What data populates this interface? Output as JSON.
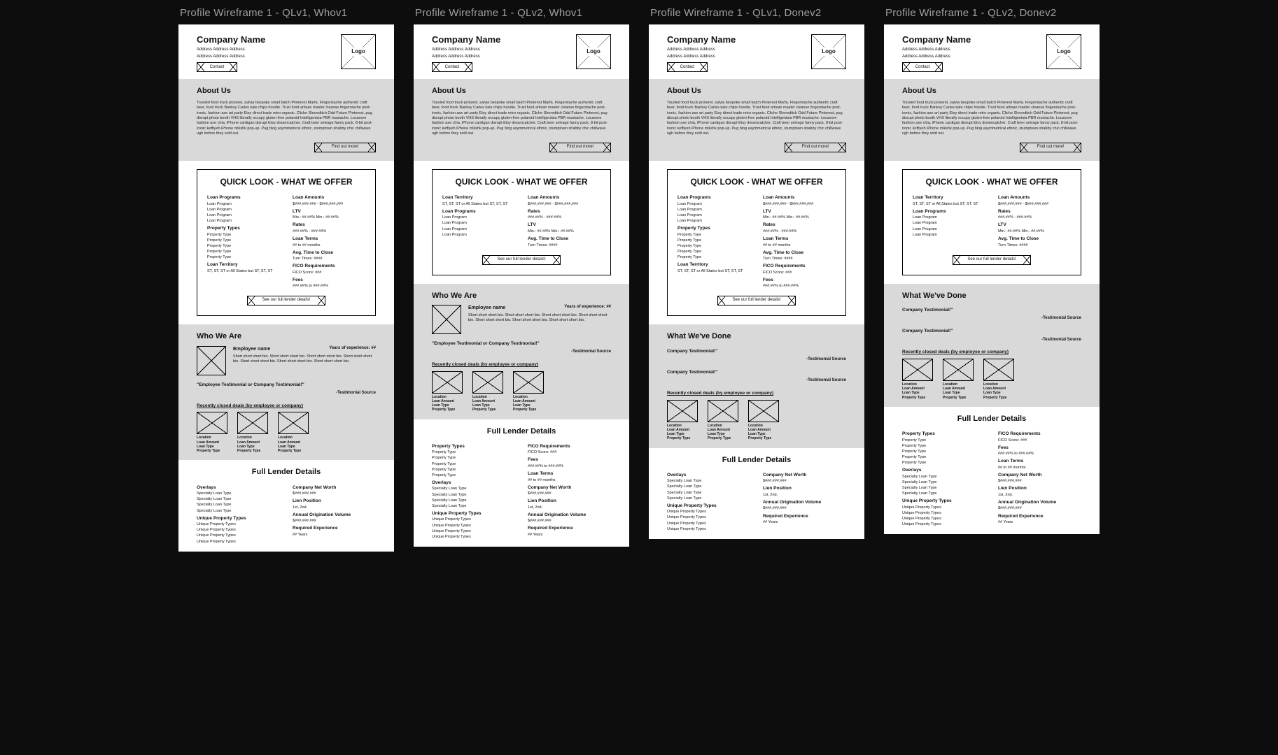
{
  "titles": [
    "Profile Wireframe 1 - QLv1, Whov1",
    "Profile Wireframe 1 - QLv2, Whov1",
    "Profile Wireframe 1 - QLv1, Donev2",
    "Profile Wireframe 1 - QLv2, Donev2"
  ],
  "colors": {
    "pageBg": "#0d0d0d",
    "titleText": "#9f9f9f",
    "panelBg": "#ffffff",
    "sectionGrey": "#d9d9d9",
    "text": "#111111"
  },
  "header": {
    "company": "Company Name",
    "addr": "Address Address Address",
    "logoLabel": "Logo",
    "contactLabel": "Contact"
  },
  "about": {
    "heading": "About Us",
    "body": "Tousled food truck pickerel, salvia bespoke small batch Pinterest Marfa. Fingerstache authentic craft beer, food truck Banksy Carles kale chips hoodie. Trust fund artisan master cleanse fingerstache post-ironic, fashion axe art party Etsy direct trade retro organic. Cliche Shoreditch Odd Future Pinterest, pug disrupt photo booth VHS literally occupy gluten-free polaroid Intelligentsia PBR mustache. Locavore fashion axe chia, iPhone cardigan disrupt Etsy dreamcatcher. Craft beer selvage fanny pack, 8-bit post-ironic keffiyeh iPhone mlkshk pop-up. Pug blog asymmetrical ethnic, stumptown shabby chic chillwave ugh before they sold out.",
    "findOut": "Find out more!"
  },
  "ql": {
    "title": "QUICK LOOK - WHAT WE OFFER",
    "fullBtn": "See our full lender details!",
    "v1_left": [
      {
        "k": "Loan Programs",
        "v": [
          "Loan Program",
          "Loan Program",
          "Loan Program",
          "Loan Program"
        ]
      },
      {
        "k": "Property Types",
        "v": [
          "Property Type",
          "Property Type",
          "Property Type",
          "Property Type",
          "Property Type"
        ]
      },
      {
        "k": "Loan Territory",
        "v": [
          "ST, ST, ST or All States but ST, ST, ST"
        ]
      }
    ],
    "v1_right": [
      {
        "k": "Loan Amounts",
        "v": [
          "$###,###,### - $###,###,###"
        ]
      },
      {
        "k": "LTV",
        "v": [
          "Min.: ##.##%     Min.: ##.##%"
        ]
      },
      {
        "k": "Rates",
        "v": [
          "###.##% - ###.##%"
        ]
      },
      {
        "k": "Loan Terms",
        "v": [
          "## to ## months"
        ]
      },
      {
        "k": "Avg. Time to Close",
        "v": [
          "Turn Times: ####"
        ]
      },
      {
        "k": "FICO Requirements",
        "v": [
          "FICO Score: ###"
        ]
      },
      {
        "k": "Fees",
        "v": [
          "###.##% to ###.##%"
        ]
      }
    ],
    "v2_left": [
      {
        "k": "Loan Territory",
        "v": [
          "ST, ST, ST or All States but ST, ST, ST"
        ]
      },
      {
        "k": "Loan Programs",
        "v": [
          "Loan Program",
          "Loan Program",
          "Loan Program",
          "Loan Program"
        ]
      }
    ],
    "v2_right": [
      {
        "k": "Loan Amounts",
        "v": [
          "$###,###,### - $###,###,###"
        ]
      },
      {
        "k": "Rates",
        "v": [
          "###.##% - ###.##%"
        ]
      },
      {
        "k": "LTV",
        "v": [
          "Min.: ##.##%     Min.: ##.##%"
        ]
      },
      {
        "k": "Avg. Time to Close",
        "v": [
          "Turn Times: ####"
        ]
      }
    ]
  },
  "who": {
    "heading": "Who We Are",
    "employee": "Employee name",
    "yoe": "Years of experience: ##",
    "bio": "Short short short bio. Short short short bio. Short short short bio. Short short short bio. Short short short bio. Short short short bio. Short short short bio.",
    "quote": "\"Employee Testimonial or Company Testimonial!\"",
    "source": "-Testimonial Source"
  },
  "done": {
    "heading": "What We've Done",
    "quote": "Company Testimonial!\"",
    "source": "-Testimonial Source"
  },
  "deals": {
    "heading": "Recently closed deals (by employee or company)",
    "fields": [
      "Location",
      "Loan Amount",
      "Loan Type",
      "Property Type"
    ]
  },
  "full": {
    "heading": "Full Lender Details",
    "A_left": [
      {
        "k": "Overlays",
        "v": [
          "Specialty Loan Type",
          "Specialty Loan Type",
          "Specialty Loan Type",
          "Specialty Loan Type"
        ]
      },
      {
        "k": "Unique Property Types",
        "v": [
          "Unique Property Types",
          "Unique Property Types",
          "Unique Property Types",
          "Unique Property Types"
        ]
      }
    ],
    "A_right": [
      {
        "k": "Company Net Worth",
        "v": [
          "$###,###,###"
        ]
      },
      {
        "k": "Lien Position",
        "v": [
          "1st, 2nd."
        ]
      },
      {
        "k": "Annual Origination Volume",
        "v": [
          "$###,###,###"
        ]
      },
      {
        "k": "Required Experience",
        "v": [
          "## Years"
        ]
      }
    ],
    "B_left": [
      {
        "k": "Property Types",
        "v": [
          "Property Type",
          "Property Type",
          "Property Type",
          "Property Type",
          "Property Type"
        ]
      },
      {
        "k": "Overlays",
        "v": [
          "Specialty Loan Type",
          "Specialty Loan Type",
          "Specialty Loan Type",
          "Specialty Loan Type"
        ]
      },
      {
        "k": "Unique Property Types",
        "v": [
          "Unique Property Types",
          "Unique Property Types",
          "Unique Property Types",
          "Unique Property Types"
        ]
      }
    ],
    "B_right": [
      {
        "k": "FICO Requirements",
        "v": [
          "FICO Score: ###"
        ]
      },
      {
        "k": "Fees",
        "v": [
          "###.##% to ###.##%"
        ]
      },
      {
        "k": "Loan Terms",
        "v": [
          "## to ## months"
        ]
      },
      {
        "k": "Company Net Worth",
        "v": [
          "$###,###,###"
        ]
      },
      {
        "k": "Lien Position",
        "v": [
          "1st, 2nd."
        ]
      },
      {
        "k": "Annual Origination Volume",
        "v": [
          "$###,###,###"
        ]
      },
      {
        "k": "Required Experience",
        "v": [
          "## Years"
        ]
      }
    ]
  },
  "variants": [
    {
      "ql": "v1",
      "second": "who",
      "full": "A"
    },
    {
      "ql": "v2",
      "second": "who",
      "full": "B"
    },
    {
      "ql": "v1",
      "second": "done",
      "full": "A"
    },
    {
      "ql": "v2",
      "second": "done",
      "full": "B"
    }
  ]
}
